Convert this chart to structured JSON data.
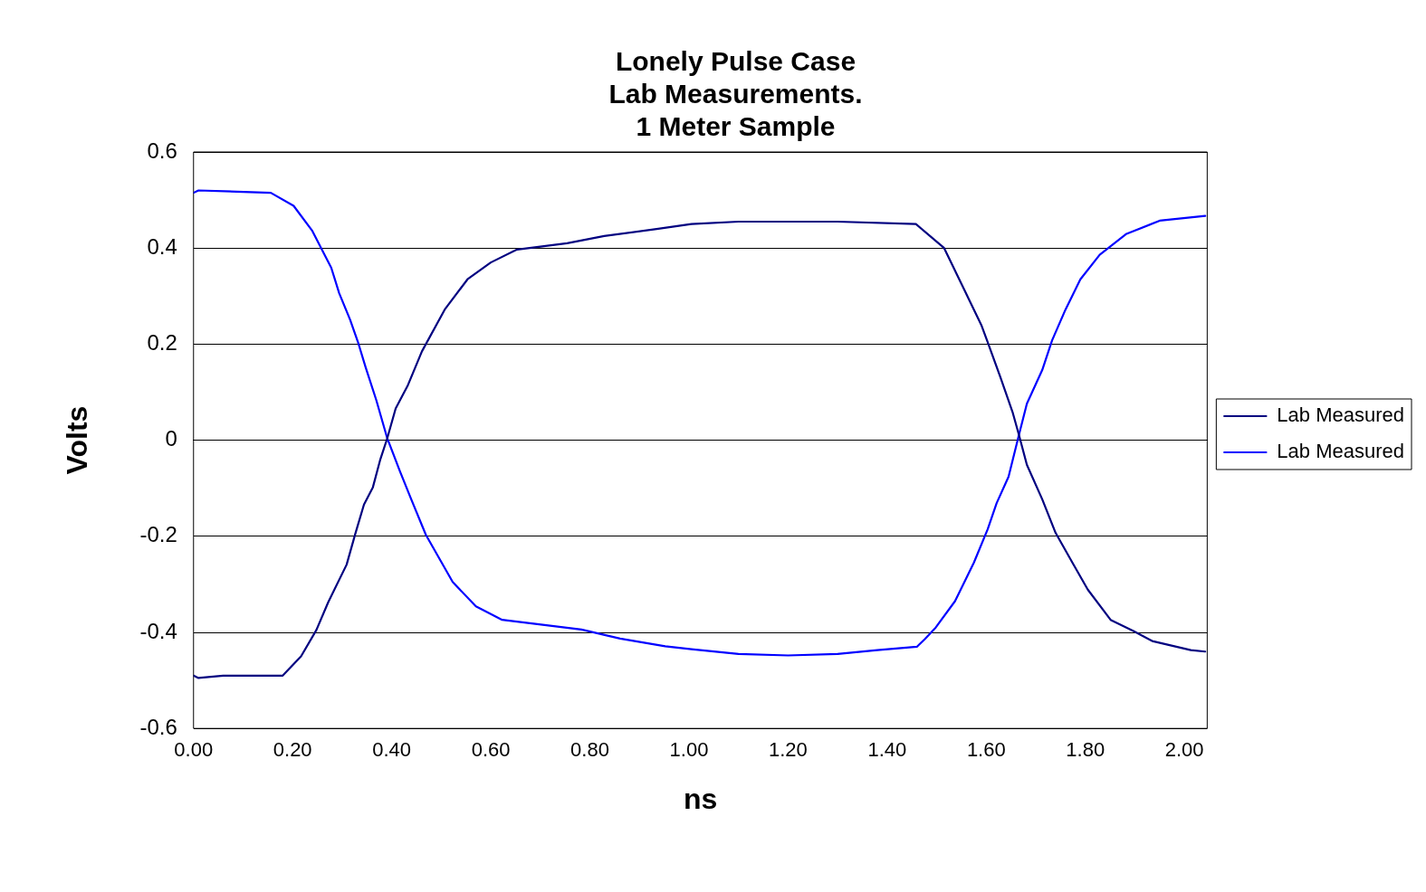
{
  "chart_data": {
    "type": "line",
    "title": [
      "Lonely Pulse Case",
      "Lab Measurements.",
      "1 Meter Sample"
    ],
    "xlabel": "ns",
    "ylabel": "Volts",
    "xlim": [
      0,
      2.046
    ],
    "ylim": [
      -0.6,
      0.6
    ],
    "xticks": [
      {
        "value": 0,
        "label": "0.00"
      },
      {
        "value": 0.2,
        "label": "0.20"
      },
      {
        "value": 0.4,
        "label": "0.40"
      },
      {
        "value": 0.6,
        "label": "0.60"
      },
      {
        "value": 0.8,
        "label": "0.80"
      },
      {
        "value": 1.0,
        "label": "1.00"
      },
      {
        "value": 1.2,
        "label": "1.20"
      },
      {
        "value": 1.4,
        "label": "1.40"
      },
      {
        "value": 1.6,
        "label": "1.60"
      },
      {
        "value": 1.8,
        "label": "1.80"
      },
      {
        "value": 2.0,
        "label": "2.00"
      }
    ],
    "yticks": [
      0.6,
      0.4,
      0.2,
      0,
      -0.2,
      -0.4,
      -0.6
    ],
    "grid": "y",
    "legend": "right",
    "marker": "none",
    "line_style": "solid",
    "series": [
      {
        "name": "Lab Measured",
        "color": "#000080",
        "x": [
          0,
          0.01,
          0.06,
          0.1,
          0.18,
          0.217,
          0.248,
          0.272,
          0.309,
          0.327,
          0.344,
          0.362,
          0.377,
          0.391,
          0.408,
          0.432,
          0.461,
          0.507,
          0.553,
          0.6,
          0.653,
          0.754,
          0.829,
          0.938,
          1.005,
          1.1,
          1.2,
          1.3,
          1.458,
          1.515,
          1.553,
          1.59,
          1.603,
          1.629,
          1.653,
          1.666,
          1.682,
          1.713,
          1.74,
          1.774,
          1.805,
          1.851,
          1.897,
          1.935,
          2.013,
          2.042
        ],
        "values": [
          -0.49,
          -0.495,
          -0.49,
          -0.49,
          -0.49,
          -0.45,
          -0.395,
          -0.337,
          -0.259,
          -0.193,
          -0.134,
          -0.098,
          -0.04,
          0.004,
          0.066,
          0.113,
          0.185,
          0.272,
          0.335,
          0.37,
          0.397,
          0.41,
          0.425,
          0.44,
          0.45,
          0.455,
          0.455,
          0.455,
          0.45,
          0.4,
          0.319,
          0.24,
          0.204,
          0.13,
          0.059,
          0.011,
          -0.051,
          -0.123,
          -0.193,
          -0.255,
          -0.311,
          -0.374,
          -0.397,
          -0.418,
          -0.437,
          -0.44
        ]
      },
      {
        "name": "Lab Measured",
        "color": "#0000ff",
        "x": [
          0,
          0.01,
          0.156,
          0.202,
          0.239,
          0.278,
          0.294,
          0.316,
          0.332,
          0.347,
          0.369,
          0.391,
          0.416,
          0.439,
          0.469,
          0.523,
          0.57,
          0.623,
          0.783,
          0.861,
          0.952,
          1.005,
          1.1,
          1.2,
          1.3,
          1.38,
          1.46,
          1.476,
          1.498,
          1.537,
          1.575,
          1.603,
          1.621,
          1.645,
          1.666,
          1.682,
          1.713,
          1.733,
          1.76,
          1.79,
          1.829,
          1.882,
          1.95,
          2.042
        ],
        "values": [
          0.515,
          0.52,
          0.515,
          0.488,
          0.437,
          0.359,
          0.306,
          0.251,
          0.204,
          0.153,
          0.083,
          0.004,
          -0.063,
          -0.122,
          -0.197,
          -0.295,
          -0.346,
          -0.374,
          -0.394,
          -0.413,
          -0.429,
          -0.435,
          -0.445,
          -0.448,
          -0.445,
          -0.437,
          -0.43,
          -0.414,
          -0.39,
          -0.335,
          -0.255,
          -0.185,
          -0.131,
          -0.076,
          0.011,
          0.076,
          0.146,
          0.208,
          0.272,
          0.335,
          0.386,
          0.429,
          0.457,
          0.467
        ]
      }
    ]
  }
}
